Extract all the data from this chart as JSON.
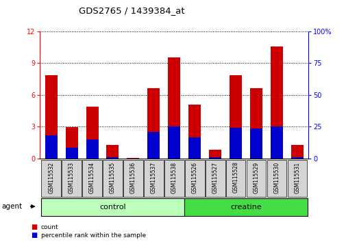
{
  "title": "GDS2765 / 1439384_at",
  "samples": [
    "GSM115532",
    "GSM115533",
    "GSM115534",
    "GSM115535",
    "GSM115536",
    "GSM115537",
    "GSM115538",
    "GSM115526",
    "GSM115527",
    "GSM115528",
    "GSM115529",
    "GSM115530",
    "GSM115531"
  ],
  "count_values": [
    7.9,
    2.95,
    4.9,
    1.3,
    0.05,
    6.65,
    9.55,
    5.1,
    0.85,
    7.9,
    6.65,
    10.55,
    1.3
  ],
  "percentile_values": [
    18.3,
    8.3,
    15.0,
    1.25,
    0.0,
    20.8,
    25.0,
    16.7,
    0.83,
    24.2,
    23.8,
    25.0,
    0.83
  ],
  "groups": [
    {
      "label": "control",
      "indices": [
        0,
        1,
        2,
        3,
        4,
        5,
        6
      ],
      "color": "#bbffbb"
    },
    {
      "label": "creatine",
      "indices": [
        7,
        8,
        9,
        10,
        11,
        12
      ],
      "color": "#44dd44"
    }
  ],
  "bar_color": "#cc0000",
  "percentile_color": "#0000cc",
  "ylim_left": [
    0,
    12
  ],
  "ylim_right": [
    0,
    100
  ],
  "yticks_left": [
    0,
    3,
    6,
    9,
    12
  ],
  "yticks_right": [
    0,
    25,
    50,
    75,
    100
  ],
  "bar_width": 0.6,
  "agent_label": "agent",
  "legend_items": [
    {
      "label": "count",
      "color": "#cc0000"
    },
    {
      "label": "percentile rank within the sample",
      "color": "#0000cc"
    }
  ]
}
